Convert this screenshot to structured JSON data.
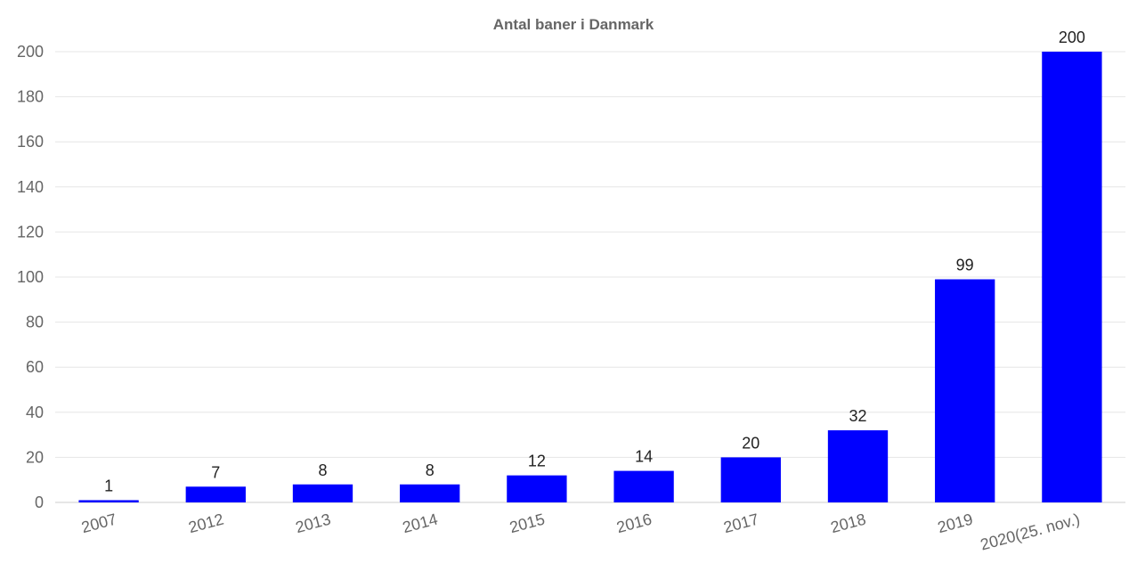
{
  "chart_data": {
    "type": "bar",
    "title": "Antal baner i Danmark",
    "xlabel": "",
    "ylabel": "",
    "categories": [
      "2007",
      "2012",
      "2013",
      "2014",
      "2015",
      "2016",
      "2017",
      "2018",
      "2019",
      "2020(25. nov.)"
    ],
    "values": [
      1,
      7,
      8,
      8,
      12,
      14,
      20,
      32,
      99,
      200
    ],
    "ylim": [
      0,
      200
    ],
    "yticks": [
      0,
      20,
      40,
      60,
      80,
      100,
      120,
      140,
      160,
      180,
      200
    ],
    "grid": true,
    "legend": "none",
    "bar_color": "#0000ff",
    "x_tick_rotation": -15
  }
}
